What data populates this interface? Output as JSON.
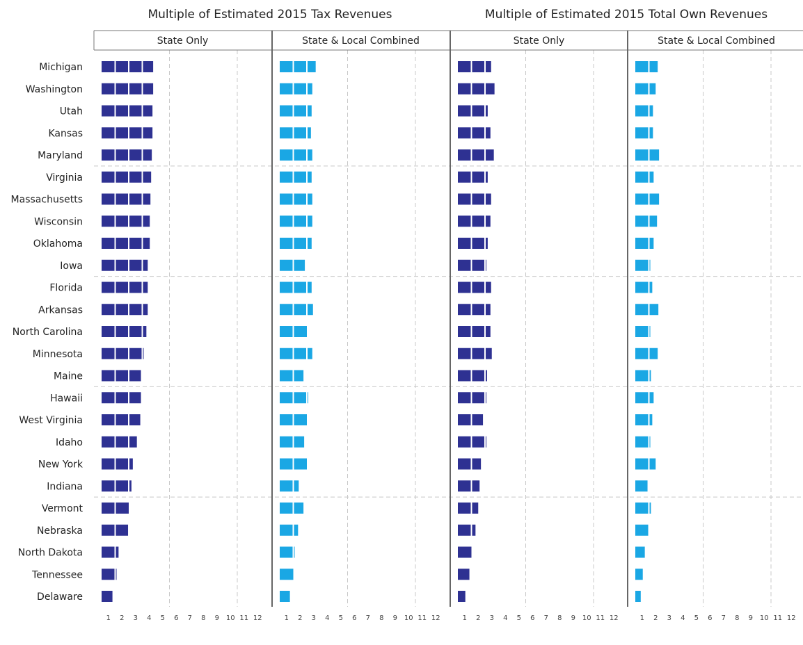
{
  "chart_data": {
    "type": "bar",
    "orientation": "horizontal",
    "states": [
      "Michigan",
      "Washington",
      "Utah",
      "Kansas",
      "Maryland",
      "Virginia",
      "Massachusetts",
      "Wisconsin",
      "Oklahoma",
      "Iowa",
      "Florida",
      "Arkansas",
      "North Carolina",
      "Minnesota",
      "Maine",
      "Hawaii",
      "West Virginia",
      "Idaho",
      "New York",
      "Indiana",
      "Vermont",
      "Nebraska",
      "North Dakota",
      "Tennessee",
      "Delaware"
    ],
    "groups": [
      {
        "title": "Multiple of Estimated 2015 Tax Revenues",
        "panels": [
          {
            "title": "State Only",
            "color": "#2e3192",
            "values": [
              3.8,
              3.8,
              3.75,
              3.75,
              3.7,
              3.65,
              3.6,
              3.55,
              3.55,
              3.4,
              3.4,
              3.4,
              3.3,
              3.1,
              2.9,
              2.9,
              2.85,
              2.6,
              2.3,
              2.2,
              2.0,
              1.95,
              1.25,
              1.1,
              0.8
            ]
          },
          {
            "title": "State & Local Combined",
            "color": "#1aa7e4",
            "values": [
              2.65,
              2.4,
              2.35,
              2.3,
              2.4,
              2.35,
              2.4,
              2.4,
              2.35,
              1.85,
              2.35,
              2.45,
              2.0,
              2.4,
              1.75,
              2.05,
              2.0,
              1.8,
              2.0,
              1.4,
              1.75,
              1.35,
              1.1,
              1.0,
              0.75
            ]
          }
        ]
      },
      {
        "title": "Multiple of Estimated 2015 Total Own Revenues",
        "panels": [
          {
            "title": "State Only",
            "color": "#2e3192",
            "values": [
              2.45,
              2.7,
              2.2,
              2.4,
              2.65,
              2.2,
              2.45,
              2.4,
              2.2,
              2.1,
              2.45,
              2.4,
              2.4,
              2.5,
              2.15,
              2.05,
              1.85,
              2.05,
              1.7,
              1.6,
              1.5,
              1.3,
              1.0,
              0.85,
              0.55
            ]
          },
          {
            "title": "State & Local Combined",
            "color": "#1aa7e4",
            "values": [
              1.65,
              1.5,
              1.3,
              1.3,
              1.75,
              1.35,
              1.75,
              1.6,
              1.35,
              1.1,
              1.25,
              1.7,
              1.1,
              1.65,
              1.15,
              1.35,
              1.25,
              1.1,
              1.5,
              0.9,
              1.15,
              0.95,
              0.7,
              0.55,
              0.4
            ]
          }
        ]
      }
    ],
    "x_ticks": [
      1,
      2,
      3,
      4,
      5,
      6,
      7,
      8,
      9,
      10,
      11,
      12
    ],
    "xlim": [
      0,
      12.5
    ],
    "gridlines_dashed": [
      5,
      10
    ]
  }
}
